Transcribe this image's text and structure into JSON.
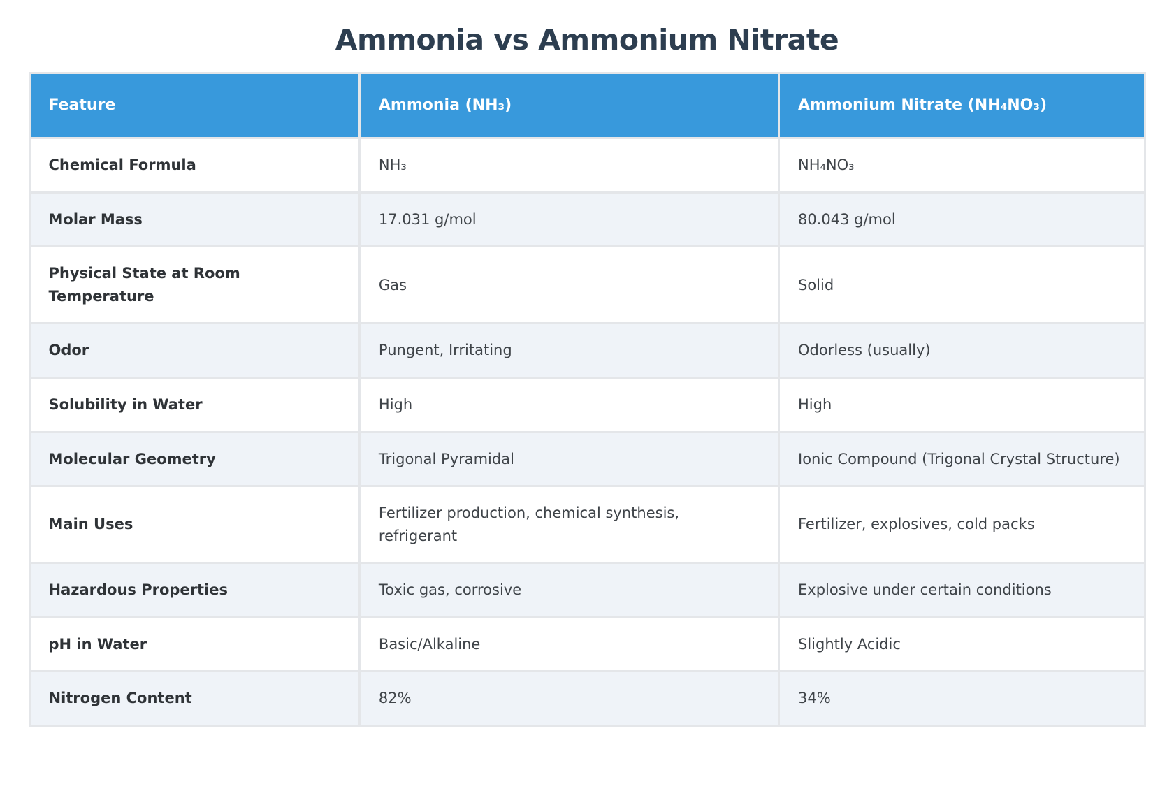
{
  "title": "Ammonia vs Ammonium Nitrate",
  "chart_data": {
    "type": "table",
    "title": "Ammonia vs Ammonium Nitrate",
    "columns": [
      "Feature",
      "Ammonia (NH₃)",
      "Ammonium Nitrate (NH₄NO₃)"
    ],
    "rows": [
      [
        "Chemical Formula",
        "NH₃",
        "NH₄NO₃"
      ],
      [
        "Molar Mass",
        "17.031 g/mol",
        "80.043 g/mol"
      ],
      [
        "Physical State at Room Temperature",
        "Gas",
        "Solid"
      ],
      [
        "Odor",
        "Pungent, Irritating",
        "Odorless (usually)"
      ],
      [
        "Solubility in Water",
        "High",
        "High"
      ],
      [
        "Molecular Geometry",
        "Trigonal Pyramidal",
        "Ionic Compound (Trigonal Crystal Structure)"
      ],
      [
        "Main Uses",
        "Fertilizer production, chemical synthesis, refrigerant",
        "Fertilizer, explosives, cold packs"
      ],
      [
        "Hazardous Properties",
        "Toxic gas, corrosive",
        "Explosive under certain conditions"
      ],
      [
        "pH in Water",
        "Basic/Alkaline",
        "Slightly Acidic"
      ],
      [
        "Nitrogen Content",
        "82%",
        "34%"
      ]
    ],
    "layout": {
      "legend": "none",
      "grid": "cell-borders",
      "header_style": "solid-blue",
      "row_striping": "white-and-light-blue-gray"
    }
  },
  "colors": {
    "header_bg": "#3899dc",
    "header_text": "#ffffff",
    "row_bg": "#ffffff",
    "row_alt_bg": "#eff3f8",
    "border": "#e4e6e9",
    "title_text": "#2d3e50",
    "feature_text": "#2f3337",
    "value_text": "#3f4449"
  }
}
